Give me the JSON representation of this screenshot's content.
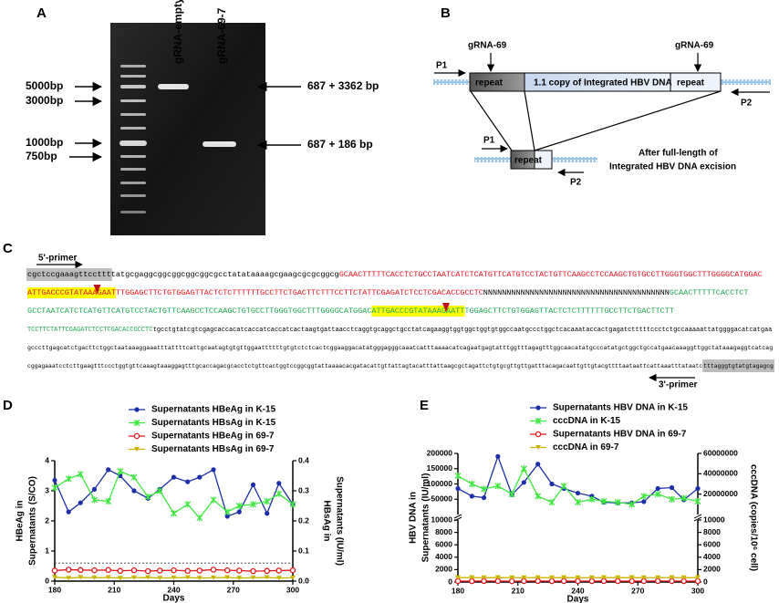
{
  "gel": {
    "label": "A",
    "lanes": [
      "gRNA-empty",
      "gRNA-69-7"
    ],
    "markers": [
      "5000bp",
      "3000bp",
      "1000bp",
      "750bp"
    ],
    "products": [
      "687 + 3362 bp",
      "687 + 186 bp"
    ]
  },
  "diagram": {
    "label": "B",
    "p1": "P1",
    "p2": "P2",
    "grna": "gRNA-69",
    "repeat": "repeat",
    "insert": "1.1 copy of Integrated HBV DNA",
    "note": [
      "After full-length of",
      "Integrated HBV DNA excision"
    ]
  },
  "sequence": {
    "label": "C",
    "primer5": "5'-primer",
    "primer3": "3'-primer",
    "lines": [
      [
        {
          "text": "cgctccgaaagttccttt",
          "color": "#000000",
          "box": "#bdbdbd"
        },
        {
          "text": "tatgcgaggcggcggcggcggcgcctatataaaagcgaagcgcgcggcg",
          "color": "#000000"
        },
        {
          "text": "GCAACTTTTTCACCTCTGCCTAATCATCTCATGTTCATGTCCTACTGTTCAAGCCTCCAAGCTGTGCCTTGGGTGGCTTTGGGGCATGGAC",
          "color": "#e8141b"
        }
      ],
      [
        {
          "text": "ATTGACCCGTATAAAGAAT",
          "color": "#e8141b",
          "highlight": "#ffff00",
          "cut": true
        },
        {
          "text": "TTGGAGCTTCTGTGGAGTTACTCTCTTTTTTGCCTTCTGACTTCTTTCCTTCTATTCGAGATCTCCTCGACACCGCCTC",
          "color": "#e8141b"
        },
        {
          "text": "NNNNNNNNNNNNNNNNNNNNNNNNNNNNNNNNNNNNNNNN",
          "color": "#000000"
        },
        {
          "text": "GCAACTTTTTCACCTCT",
          "color": "#1fa84f"
        }
      ],
      [
        {
          "text": "GCCTAATCATCTCATGTTCATGTCCTACTGTTCAAGCCTCCAAGCTGTGCCTTGGGTGGCTTTGGGGCATGGAC",
          "color": "#1fa84f"
        },
        {
          "text": "ATTGACCCGTATAAAGAATT",
          "color": "#1fa84f",
          "highlight": "#ffff00",
          "cut": true
        },
        {
          "text": "TGGAGCTTCTGTGGAGTTACTCTCTTTTTTGCCTTCTGACTTCTT",
          "color": "#1fa84f"
        }
      ],
      [
        {
          "text": "TCCTTCTATTCGAGATCTCCTCGACACCGCCTC",
          "color": "#1fa84f"
        },
        {
          "text": "tgcctgtatcgtcgagcaccacatcaccatcaccatcactaagtgattaacctcaggtgcaggctgcctatcagaaggtggtggctggtgtggccaatgccctggctcacaaataccactgagatctttttccctctgccaaaaattatggggacatcatgaa",
          "color": "#000000"
        }
      ],
      [
        {
          "text": "gcccttgagcatctgacttctggctaataaaggaaatttattttcattgcaatagtgtgttggaattttttgtgtctctcactcggaaggacatatgggagggcaaatcatttaaaacatcagaatgagtatttggtttagagtttggcaacatatgcccatatgctggctgccatgaacaaaggttggctataaagaggtcatcag",
          "color": "#000000"
        }
      ],
      [
        {
          "text": "cggagaaatcctcttgaagtttccctggtgttcaaagtaaaggagtttgcaccagacgcacctctgttcactggtccggcggtattaaaacacgatacattgttattagtacatttattaagcgctagattctgtgcgttgttgatttacagacaattgttgtacgttttaataattcattaaatttataatc",
          "color": "#000000"
        },
        {
          "text": "tttagggtgtatgtagagcg",
          "color": "#000000",
          "box": "#bdbdbd"
        }
      ]
    ]
  },
  "chart_data": [
    {
      "type": "line",
      "label": "D",
      "xlabel": "Days",
      "ylabel": [
        "HBeAg in",
        "Supernatants (S/CO)"
      ],
      "y2label": [
        "HBsAg in",
        "Supernatants (IU/ml)"
      ],
      "x": [
        180,
        187,
        193,
        200,
        207,
        213,
        220,
        227,
        233,
        240,
        247,
        253,
        260,
        267,
        273,
        280,
        287,
        293,
        300
      ],
      "xlim": [
        180,
        300
      ],
      "xticks": [
        180,
        210,
        240,
        270,
        300
      ],
      "ylim": [
        0,
        4
      ],
      "yticks": [
        0,
        1,
        2,
        3,
        4
      ],
      "y2lim": [
        0,
        0.4
      ],
      "y2ticks": [
        {
          "value": 0,
          "label": "0.0"
        },
        0.1,
        0.2,
        0.3,
        0.4
      ],
      "reference_line": 0.6,
      "series": [
        {
          "name": "Supernatants HBeAg in K-15",
          "color": "#1c2fa8",
          "marker": "circle",
          "axis": "y",
          "values": [
            3.35,
            2.3,
            2.6,
            3.05,
            3.7,
            3.5,
            3.0,
            2.75,
            3.05,
            3.45,
            3.3,
            3.45,
            3.7,
            2.15,
            2.3,
            3.2,
            2.25,
            3.25,
            2.55
          ]
        },
        {
          "name": "Supernatants HBsAg in K-15",
          "color": "#3fe83f",
          "marker": "cross",
          "axis": "y2",
          "values": [
            0.31,
            0.34,
            0.355,
            0.27,
            0.265,
            0.365,
            0.345,
            0.28,
            0.3,
            0.225,
            0.255,
            0.21,
            0.27,
            0.23,
            0.25,
            0.255,
            0.265,
            0.29,
            0.255
          ]
        },
        {
          "name": "Supernatants HBeAg in 69-7",
          "color": "#e8141b",
          "marker": "circle-open",
          "axis": "y",
          "values": [
            0.35,
            0.38,
            0.37,
            0.36,
            0.37,
            0.34,
            0.36,
            0.33,
            0.35,
            0.36,
            0.34,
            0.35,
            0.38,
            0.36,
            0.35,
            0.33,
            0.34,
            0.35,
            0.36
          ]
        },
        {
          "name": "Supernatants HBsAg in 69-7",
          "color": "#c9b400",
          "marker": "triangle-down",
          "axis": "y2",
          "values": [
            0.013,
            0.01,
            0.012,
            0.011,
            0.012,
            0.01,
            0.011,
            0.012,
            0.01,
            0.011,
            0.012,
            0.01,
            0.011,
            0.012,
            0.01,
            0.011,
            0.012,
            0.01,
            0.011
          ]
        }
      ]
    },
    {
      "type": "line",
      "label": "E",
      "xlabel": "Days",
      "ylabel": [
        "HBV DNA in",
        "Supernatants (IU/ml)"
      ],
      "y2label": [
        "cccDNA (copies/10⁶ cell)"
      ],
      "x": [
        180,
        187,
        193,
        200,
        207,
        213,
        220,
        227,
        233,
        240,
        247,
        253,
        260,
        267,
        273,
        280,
        287,
        293,
        300
      ],
      "xlim": [
        180,
        300
      ],
      "xticks": [
        180,
        210,
        240,
        270,
        300
      ],
      "ysegments": [
        {
          "ylim": [
            0,
            10000
          ],
          "yticks": [
            0,
            2000,
            4000,
            6000,
            8000,
            10000
          ]
        },
        {
          "ylim": [
            0,
            200000
          ],
          "yticks": [
            50000,
            100000,
            150000,
            200000
          ]
        }
      ],
      "y2segments": [
        {
          "y2lim": [
            0,
            10000
          ],
          "y2ticks": [
            0,
            2000,
            4000,
            6000,
            8000,
            10000
          ]
        },
        {
          "y2lim": [
            0,
            60000000
          ],
          "y2ticks": [
            20000000,
            40000000,
            60000000
          ]
        }
      ],
      "series": [
        {
          "name": "Supernatants HBV DNA in K-15",
          "color": "#1c2fa8",
          "marker": "circle",
          "axis": "y",
          "values": [
            85000,
            60000,
            55000,
            190000,
            65000,
            105000,
            165000,
            100000,
            85000,
            70000,
            60000,
            40000,
            38000,
            38000,
            42000,
            85000,
            88000,
            48000,
            85000
          ]
        },
        {
          "name": "cccDNA in K-15",
          "color": "#3fe83f",
          "marker": "cross",
          "axis": "y2",
          "values": [
            38000000,
            30000000,
            25000000,
            28000000,
            20000000,
            45000000,
            18000000,
            12000000,
            28000000,
            12000000,
            15000000,
            13000000,
            12000000,
            10000000,
            18000000,
            20000000,
            15000000,
            16000000,
            13000000
          ]
        },
        {
          "name": "Supernatants HBV DNA in 69-7",
          "color": "#e8141b",
          "marker": "circle-open",
          "axis": "y",
          "values": [
            150,
            140,
            160,
            150,
            130,
            150,
            160,
            140,
            150,
            150,
            140,
            160,
            150,
            140,
            150,
            160,
            150,
            140,
            150
          ]
        },
        {
          "name": "cccDNA in 69-7",
          "color": "#c9b400",
          "marker": "triangle-down",
          "axis": "y2",
          "values": [
            700,
            720,
            690,
            710,
            700,
            700,
            720,
            690,
            710,
            700,
            700,
            720,
            690,
            710,
            700,
            700,
            720,
            690,
            710
          ]
        }
      ]
    }
  ]
}
